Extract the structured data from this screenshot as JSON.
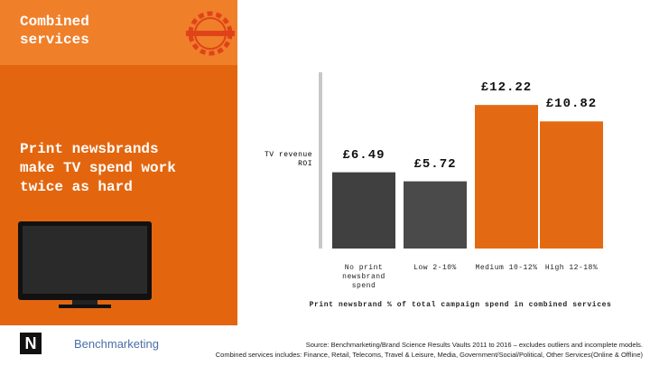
{
  "slide": {
    "title": "Combined services",
    "headline": "Print newsbrands make TV spend work twice as hard",
    "source_line_1": "Source: Benchmarketing/Brand Science Results Vaults 2011 to 2016 – excludes outliers and incomplete models.",
    "source_line_2": "Combined services includes: Finance, Retail, Telecoms, Travel & Leisure, Media, Government/Social/Political, Other Services(Online & Offline)",
    "logo_text": "Benchmarketing"
  },
  "chart_data": {
    "type": "bar",
    "y_label": "TV revenue ROI",
    "x_label": "Print newsbrand % of total campaign spend in combined services",
    "categories": [
      "No print newsbrand spend",
      "Low 2-10%",
      "Medium 10-12%",
      "High 12-18%"
    ],
    "values": [
      6.49,
      5.72,
      12.22,
      10.82
    ],
    "value_labels": [
      "£6.49",
      "£5.72",
      "£12.22",
      "£10.82"
    ],
    "colors": [
      "#404040",
      "#4a4a4a",
      "#e36a12",
      "#e36a12"
    ],
    "ylim": [
      0,
      15
    ]
  }
}
